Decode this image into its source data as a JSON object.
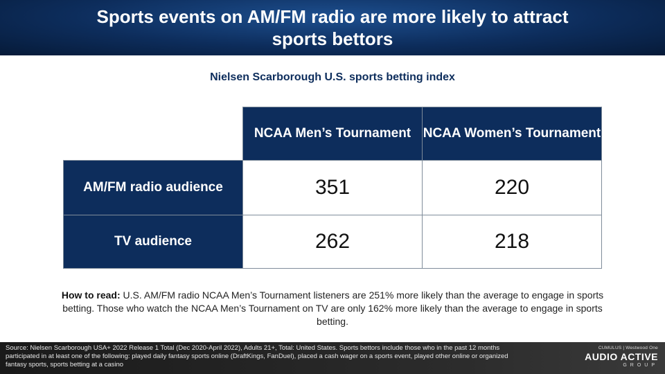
{
  "header": {
    "title": "Sports events on AM/FM radio are more likely to attract sports bettors"
  },
  "subtitle": "Nielsen Scarborough U.S. sports betting index",
  "table": {
    "columns": [
      "NCAA Men’s Tournament",
      "NCAA Women’s Tournament"
    ],
    "rows": [
      {
        "label": "AM/FM radio audience",
        "values": [
          "351",
          "220"
        ]
      },
      {
        "label": "TV audience",
        "values": [
          "262",
          "218"
        ]
      }
    ]
  },
  "how_to_read": {
    "label": "How to read:",
    "text": "U.S. AM/FM radio NCAA Men’s Tournament listeners are 251% more likely than the average to engage in sports betting. Those who watch the NCAA Men’s Tournament on TV are only 162% more likely than the average to engage in sports betting."
  },
  "footer": {
    "source": "Source: Nielsen Scarborough USA+ 2022 Release 1 Total (Dec 2020-April 2022), Adults 21+, Total: United States. Sports bettors include those who in the past 12 months participated in at least one of the following: played daily fantasy sports online (DraftKings, FanDuel), placed a cash wager on a sports event, played other online or organized fantasy sports, sports betting at a casino",
    "logo_top": "CUMULUS | Westwood One",
    "logo_main": "AUDIO ACTIVE",
    "logo_sub": "GROUP"
  }
}
